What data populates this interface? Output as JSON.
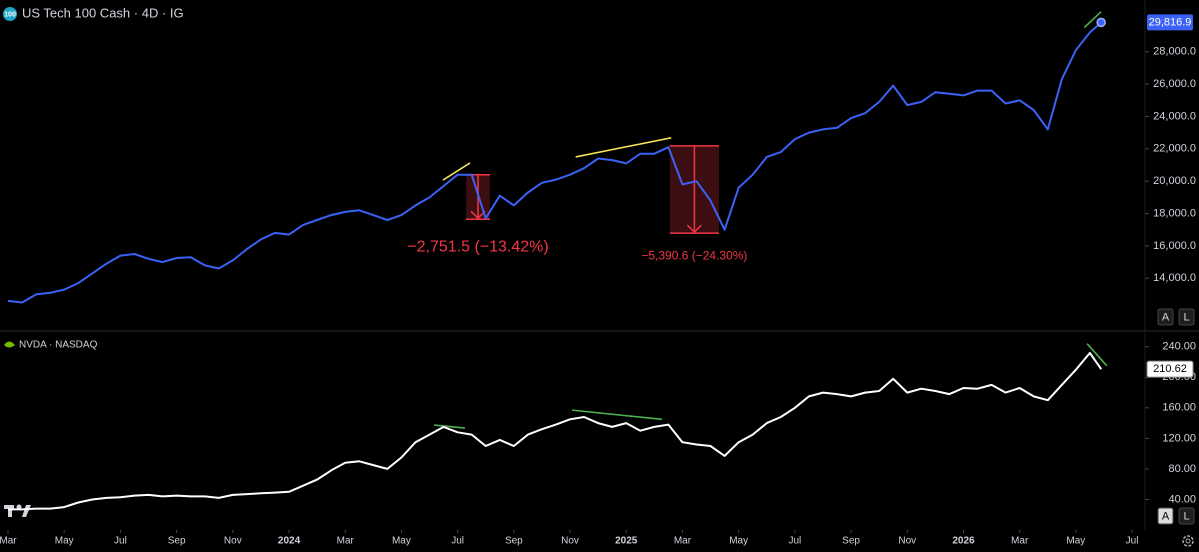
{
  "chart_data": [
    {
      "type": "line",
      "title": "US Tech 100 Cash · 4D · IG",
      "icon": "100",
      "xlim": [
        -0.285,
        40.46
      ],
      "ylim": [
        10800,
        31200
      ],
      "x": [
        0,
        0.5,
        1,
        1.5,
        2,
        2.5,
        3,
        3.5,
        4,
        4.5,
        5,
        5.5,
        6,
        6.5,
        7,
        7.5,
        8,
        8.5,
        9,
        9.5,
        10,
        10.5,
        11,
        11.5,
        12,
        12.5,
        13,
        13.5,
        14,
        14.5,
        15,
        15.5,
        16,
        16.5,
        17,
        17.5,
        18,
        18.5,
        19,
        19.5,
        20,
        20.5,
        21,
        21.5,
        22,
        22.5,
        23,
        23.5,
        24,
        24.5,
        25,
        25.5,
        26,
        26.5,
        27,
        27.5,
        28,
        28.5,
        29,
        29.5,
        30,
        30.5,
        31,
        31.5,
        32,
        32.5,
        33,
        33.5,
        34,
        34.5,
        35,
        35.5,
        36,
        36.5,
        37,
        37.5,
        38,
        38.5,
        38.9
      ],
      "series": [
        {
          "color": "#3b62f5",
          "last_label": "29,816.9",
          "values": [
            12600,
            12500,
            13000,
            13100,
            13300,
            13700,
            14300,
            14900,
            15400,
            15500,
            15200,
            15000,
            15250,
            15300,
            14800,
            14600,
            15100,
            15800,
            16400,
            16800,
            16700,
            17300,
            17600,
            17900,
            18100,
            18200,
            17900,
            17600,
            17900,
            18500,
            19000,
            19700,
            20400,
            20400,
            17700,
            19100,
            18500,
            19300,
            19900,
            20100,
            20400,
            20800,
            21400,
            21300,
            21100,
            21700,
            21700,
            22100,
            19800,
            20000,
            18800,
            17000,
            19600,
            20400,
            21500,
            21800,
            22600,
            23000,
            23200,
            23300,
            23900,
            24200,
            24900,
            25900,
            24700,
            24900,
            25500,
            25400,
            25300,
            25600,
            25600,
            24800,
            25000,
            24400,
            23200,
            26300,
            28100,
            29200,
            29816.9
          ]
        }
      ],
      "yticks": [
        {
          "value": 14000,
          "label": "14,000.0"
        },
        {
          "value": 16000,
          "label": "16,000.0"
        },
        {
          "value": 18000,
          "label": "18,000.0"
        },
        {
          "value": 20000,
          "label": "20,000.0"
        },
        {
          "value": 22000,
          "label": "22,000.0"
        },
        {
          "value": 24000,
          "label": "24,000.0"
        },
        {
          "value": 26000,
          "label": "26,000.0"
        },
        {
          "value": 28000,
          "label": "28,000.0"
        }
      ],
      "trendlines": [
        {
          "color": "#f2e05a",
          "x": [
            15.48,
            16.44
          ],
          "y": [
            20070,
            21130
          ]
        },
        {
          "color": "#f2e05a",
          "x": [
            20.2,
            23.6
          ],
          "y": [
            21500,
            22680
          ]
        },
        {
          "color": "#4caf50",
          "x": [
            38.3,
            38.9
          ],
          "y": [
            29500,
            30480
          ]
        }
      ],
      "measures": [
        {
          "x": [
            16.3,
            17.15
          ],
          "from": 20400,
          "to": 17648.5,
          "label": "−2,751.5 (−13.42%)"
        },
        {
          "x": [
            23.55,
            25.3
          ],
          "from": 22180,
          "to": 16789.4,
          "label": "−5,390.6 (−24.30%)"
        }
      ],
      "controls": [
        "A",
        "L"
      ]
    },
    {
      "type": "line",
      "title": "NVDA · NASDAQ",
      "xlim": [
        -0.285,
        40.46
      ],
      "ylim": [
        0,
        258
      ],
      "x": [
        0,
        0.5,
        1,
        1.5,
        2,
        2.5,
        3,
        3.5,
        4,
        4.5,
        5,
        5.5,
        6,
        6.5,
        7,
        7.5,
        8,
        8.5,
        9,
        9.5,
        10,
        10.5,
        11,
        11.5,
        12,
        12.5,
        13,
        13.5,
        14,
        14.5,
        15,
        15.5,
        16,
        16.5,
        17,
        17.5,
        18,
        18.5,
        19,
        19.5,
        20,
        20.5,
        21,
        21.5,
        22,
        22.5,
        23,
        23.5,
        24,
        24.5,
        25,
        25.5,
        26,
        26.5,
        27,
        27.5,
        28,
        28.5,
        29,
        29.5,
        30,
        30.5,
        31,
        31.5,
        32,
        32.5,
        33,
        33.5,
        34,
        34.5,
        35,
        35.5,
        36,
        36.5,
        37,
        37.5,
        38,
        38.5,
        38.9
      ],
      "series": [
        {
          "color": "#ffffff",
          "last_label": "210.62",
          "values": [
            27,
            27,
            28,
            28,
            30,
            36,
            40,
            42,
            43,
            45,
            46,
            44,
            45,
            44,
            44,
            42,
            46,
            47,
            48,
            49,
            50,
            58,
            66,
            78,
            88,
            90,
            85,
            80,
            95,
            115,
            125,
            135,
            128,
            125,
            110,
            118,
            110,
            125,
            132,
            138,
            145,
            148,
            140,
            135,
            140,
            130,
            135,
            138,
            115,
            112,
            110,
            97,
            115,
            125,
            140,
            148,
            160,
            175,
            180,
            178,
            175,
            180,
            182,
            198,
            180,
            185,
            182,
            178,
            186,
            185,
            190,
            180,
            186,
            175,
            170,
            190,
            210,
            232,
            210.62
          ]
        }
      ],
      "yticks": [
        {
          "value": 40,
          "label": "40.00"
        },
        {
          "value": 80,
          "label": "80.00"
        },
        {
          "value": 120,
          "label": "120.00"
        },
        {
          "value": 160,
          "label": "160.00"
        },
        {
          "value": 200,
          "label": "200.00"
        },
        {
          "value": 240,
          "label": "240.00"
        }
      ],
      "xticks": [
        {
          "value": 0,
          "label": "Mar"
        },
        {
          "value": 2,
          "label": "May"
        },
        {
          "value": 4,
          "label": "Jul"
        },
        {
          "value": 6,
          "label": "Sep"
        },
        {
          "value": 8,
          "label": "Nov"
        },
        10,
        {
          "value": 12,
          "label": "Mar"
        },
        {
          "value": 14,
          "label": "May"
        },
        {
          "value": 16,
          "label": "Jul"
        },
        {
          "value": 18,
          "label": "Sep"
        },
        {
          "value": 20,
          "label": "Nov"
        },
        22,
        {
          "value": 24,
          "label": "Mar"
        },
        {
          "value": 26,
          "label": "May"
        },
        {
          "value": 28,
          "label": "Jul"
        },
        {
          "value": 30,
          "label": "Sep"
        },
        {
          "value": 32,
          "label": "Nov"
        },
        34,
        {
          "value": 36,
          "label": "Mar"
        },
        {
          "value": 38,
          "label": "May"
        },
        {
          "value": 40,
          "label": "Jul"
        }
      ],
      "year_ticks": [
        {
          "value": 10,
          "label": "2024"
        },
        {
          "value": 22,
          "label": "2025"
        },
        {
          "value": 34,
          "label": "2026"
        }
      ],
      "trendlines": [
        {
          "color": "#4caf50",
          "x": [
            15.16,
            16.26
          ],
          "y": [
            137.4,
            133.5
          ]
        },
        {
          "color": "#4caf50",
          "x": [
            20.07,
            23.27
          ],
          "y": [
            157,
            145
          ]
        },
        {
          "color": "#4caf50",
          "x": [
            38.4,
            39.1
          ],
          "y": [
            244,
            215
          ]
        }
      ],
      "controls": [
        "A",
        "L"
      ]
    }
  ]
}
